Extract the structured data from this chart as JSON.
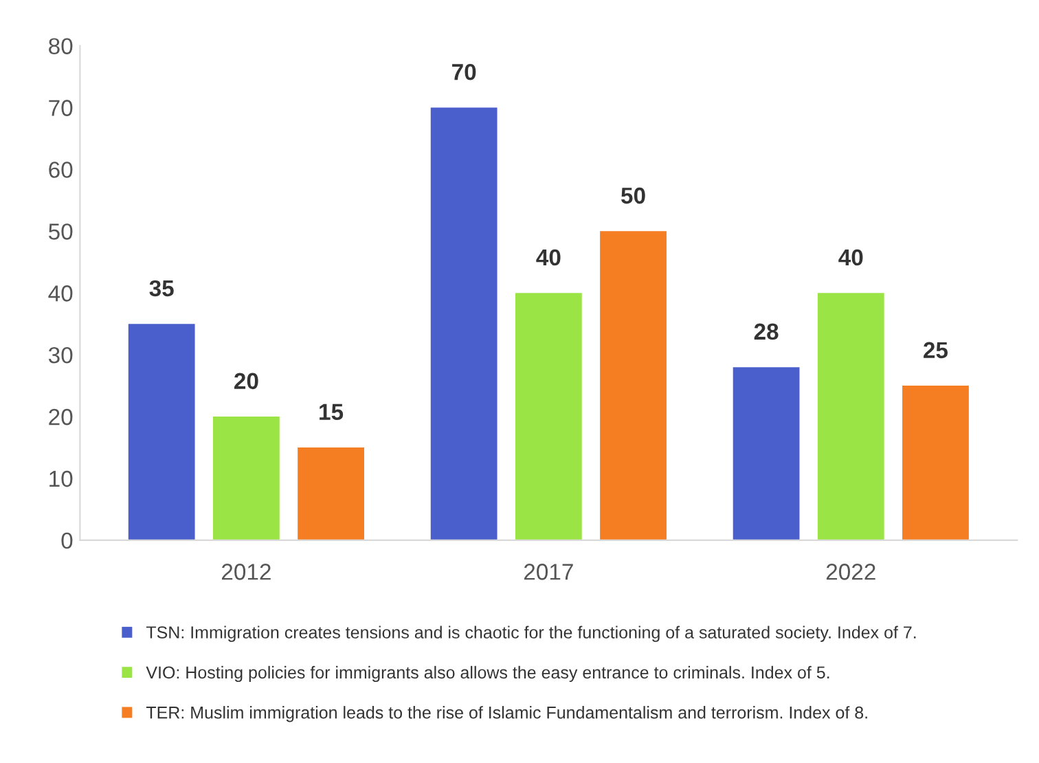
{
  "chart_data": {
    "type": "bar",
    "categories": [
      "2012",
      "2017",
      "2022"
    ],
    "series": [
      {
        "name": "TSN: Immigration creates tensions and is chaotic for the functioning of a saturated society. Index of 7.",
        "color": "#4a5fcc",
        "values": [
          35,
          70,
          28
        ]
      },
      {
        "name": "VIO: Hosting policies for immigrants also allows the easy entrance to criminals. Index of 5.",
        "color": "#9be445",
        "values": [
          20,
          40,
          40
        ]
      },
      {
        "name": "TER: Muslim immigration leads to the rise of Islamic Fundamentalism and terrorism. Index of 8.",
        "color": "#f57d22",
        "values": [
          15,
          50,
          25
        ]
      }
    ],
    "ylim": [
      0,
      80
    ],
    "yticks": [
      0,
      10,
      20,
      30,
      40,
      50,
      60,
      70,
      80
    ],
    "data_labels": true,
    "grid": false,
    "legend": "bottom"
  }
}
